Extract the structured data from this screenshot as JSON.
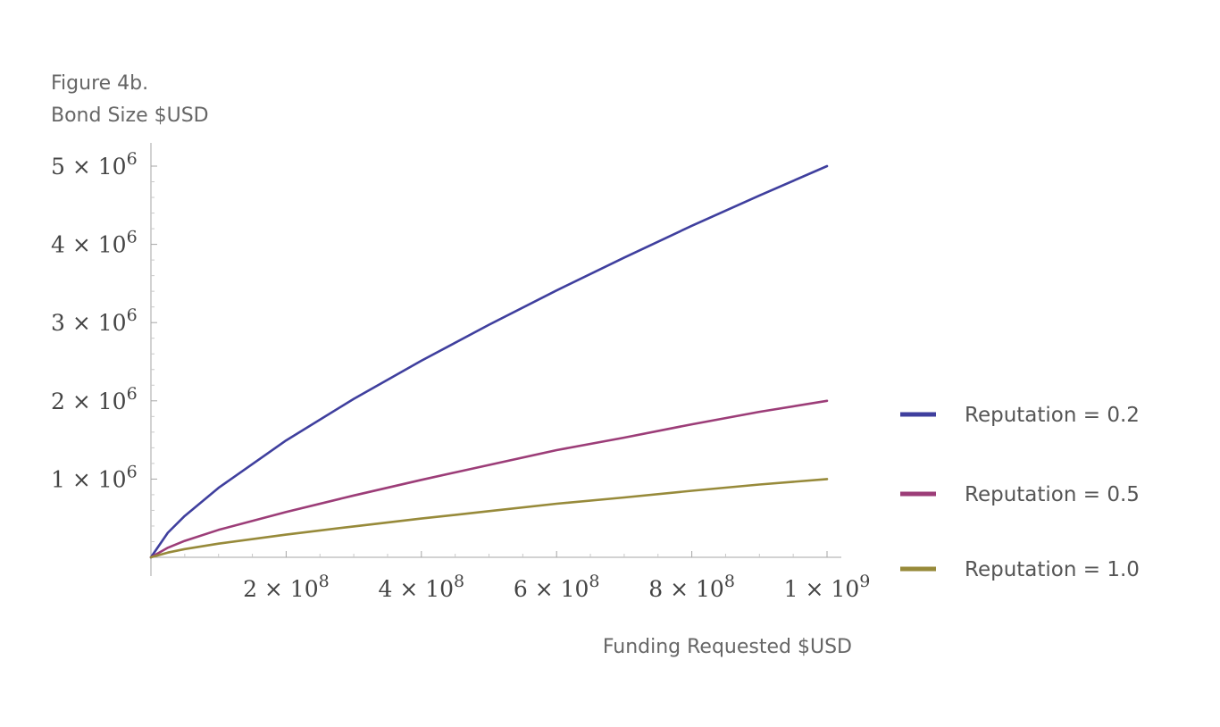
{
  "chart_data": {
    "type": "line",
    "figure_label": "Figure 4b.",
    "ylabel": "Bond Size $USD",
    "xlabel": "Funding Requested $USD",
    "xlim": [
      0,
      1000000000
    ],
    "ylim": [
      0,
      5000000
    ],
    "x_ticks": [
      {
        "value": 200000000,
        "label": "2 × 10",
        "exp": "8"
      },
      {
        "value": 400000000,
        "label": "4 × 10",
        "exp": "8"
      },
      {
        "value": 600000000,
        "label": "6 × 10",
        "exp": "8"
      },
      {
        "value": 800000000,
        "label": "8 × 10",
        "exp": "8"
      },
      {
        "value": 1000000000,
        "label": "1 × 10",
        "exp": "9"
      }
    ],
    "y_ticks": [
      {
        "value": 1000000,
        "label": "1 × 10",
        "exp": "6"
      },
      {
        "value": 2000000,
        "label": "2 × 10",
        "exp": "6"
      },
      {
        "value": 3000000,
        "label": "3 × 10",
        "exp": "6"
      },
      {
        "value": 4000000,
        "label": "4 × 10",
        "exp": "6"
      },
      {
        "value": 5000000,
        "label": "5 × 10",
        "exp": "6"
      }
    ],
    "x": [
      0,
      25000000,
      50000000,
      100000000,
      200000000,
      300000000,
      400000000,
      500000000,
      600000000,
      700000000,
      800000000,
      900000000,
      1000000000
    ],
    "series": [
      {
        "name": "Reputation = 0.2",
        "color": "#3f3f9e",
        "values": [
          0,
          314000,
          528000,
          888000,
          1494000,
          2025000,
          2513000,
          2973000,
          3411000,
          3831000,
          4237000,
          4624000,
          5000000
        ]
      },
      {
        "name": "Reputation = 0.5",
        "color": "#9c3d78",
        "values": [
          0,
          122000,
          210000,
          350000,
          580000,
          790000,
          990000,
          1180000,
          1370000,
          1530000,
          1700000,
          1860000,
          2000000
        ]
      },
      {
        "name": "Reputation = 1.0",
        "color": "#978a3a",
        "values": [
          0,
          60000,
          105000,
          175000,
          290000,
          395000,
          495000,
          590000,
          685000,
          765000,
          850000,
          930000,
          1000000
        ]
      }
    ],
    "legend_position": "right",
    "grid": false
  }
}
